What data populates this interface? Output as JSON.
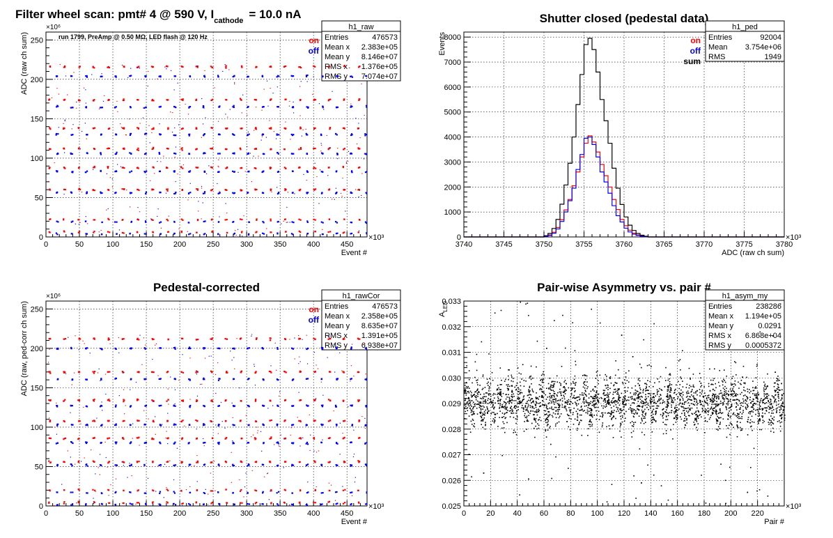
{
  "chart_data": [
    {
      "type": "scatter",
      "title": "Filter wheel scan: pmt#   4 @   590 V, I",
      "title_sub": "cathode",
      "title_tail": "= 10.0 nA",
      "annotation": "run 1799, PreAmp @ 0.50 MΩ, LED flash @  120 Hz",
      "xlabel": "Event #",
      "ylabel": "ADC (raw ch sum)",
      "x_multiplier": "×10³",
      "y_multiplier": "×10⁶",
      "xlim": [
        0,
        480
      ],
      "ylim": [
        0,
        260
      ],
      "xticks": [
        0,
        50,
        100,
        150,
        200,
        250,
        300,
        350,
        400,
        450
      ],
      "yticks": [
        0,
        50,
        100,
        150,
        200,
        250
      ],
      "grid": true,
      "legend": [
        {
          "name": "on",
          "color": "#ff0000"
        },
        {
          "name": "off",
          "color": "#0000ff"
        }
      ],
      "stats": {
        "name": "h1_raw",
        "rows": [
          [
            "Entries",
            "476573"
          ],
          [
            "Mean x",
            "2.383e+05"
          ],
          [
            "Mean y",
            "8.146e+07"
          ],
          [
            "RMS x",
            "1.376e+05"
          ],
          [
            "RMS y",
            "7.074e+07"
          ]
        ]
      },
      "series": [
        {
          "name": "on",
          "color": "#ff0000",
          "levels": [
            216,
            174,
            138,
            112,
            88,
            60,
            22,
            6
          ],
          "period": 22,
          "offset": 3
        },
        {
          "name": "off",
          "color": "#0000ff",
          "levels": [
            204,
            165,
            130,
            106,
            83,
            56,
            19,
            4
          ],
          "period": 22,
          "offset": 14
        }
      ]
    },
    {
      "type": "line",
      "title": "Shutter closed (pedestal data)",
      "xlabel": "ADC (raw ch sum)",
      "ylabel": "Events",
      "x_multiplier": "×10³",
      "xlim": [
        3740,
        3780
      ],
      "ylim": [
        0,
        8200
      ],
      "xticks": [
        3740,
        3745,
        3750,
        3755,
        3760,
        3765,
        3770,
        3775,
        3780
      ],
      "yticks": [
        0,
        1000,
        2000,
        3000,
        4000,
        5000,
        6000,
        7000,
        8000
      ],
      "grid": true,
      "legend": [
        {
          "name": "on",
          "color": "#ff0000"
        },
        {
          "name": "off",
          "color": "#0000ff"
        },
        {
          "name": "sum",
          "color": "#000000"
        }
      ],
      "stats": {
        "name": "h1_ped",
        "rows": [
          [
            "Entries",
            "92004"
          ],
          [
            "Mean",
            "3.754e+06"
          ],
          [
            "RMS",
            "1949"
          ]
        ]
      },
      "bin_width": 0.5,
      "bins_start": 3750,
      "series": [
        {
          "name": "on",
          "color": "#ff0000",
          "values": [
            30,
            80,
            190,
            380,
            690,
            1080,
            1500,
            2050,
            2600,
            3200,
            3750,
            4050,
            3800,
            3400,
            2900,
            2450,
            2000,
            1500,
            1100,
            700,
            450,
            270,
            150,
            80,
            40,
            20
          ]
        },
        {
          "name": "off",
          "color": "#0000ff",
          "values": [
            20,
            60,
            150,
            320,
            620,
            1000,
            1450,
            1950,
            2700,
            3300,
            3950,
            4000,
            3700,
            3200,
            2600,
            2200,
            1750,
            1250,
            850,
            600,
            350,
            200,
            110,
            60,
            30,
            10
          ]
        },
        {
          "name": "sum",
          "color": "#000000",
          "values": [
            50,
            140,
            340,
            700,
            1310,
            2080,
            2950,
            4000,
            5300,
            6500,
            7700,
            7950,
            7500,
            6600,
            5500,
            4650,
            3750,
            2750,
            1950,
            1300,
            800,
            470,
            260,
            140,
            70,
            30
          ]
        }
      ]
    },
    {
      "type": "scatter",
      "title": "Pedestal-corrected",
      "xlabel": "Event #",
      "ylabel": "ADC (raw, ped-corr ch sum)",
      "x_multiplier": "×10³",
      "y_multiplier": "×10⁶",
      "xlim": [
        0,
        480
      ],
      "ylim": [
        0,
        260
      ],
      "xticks": [
        0,
        50,
        100,
        150,
        200,
        250,
        300,
        350,
        400,
        450
      ],
      "yticks": [
        0,
        50,
        100,
        150,
        200,
        250
      ],
      "grid": true,
      "legend": [
        {
          "name": "on",
          "color": "#ff0000"
        },
        {
          "name": "off",
          "color": "#0000ff"
        }
      ],
      "stats": {
        "name": "h1_rawCor",
        "rows": [
          [
            "Entries",
            "476573"
          ],
          [
            "Mean x",
            "2.358e+05"
          ],
          [
            "Mean y",
            "8.635e+07"
          ],
          [
            "RMS x",
            "1.391e+05"
          ],
          [
            "RMS y",
            "6.938e+07"
          ]
        ]
      },
      "series": [
        {
          "name": "on",
          "color": "#ff0000",
          "levels": [
            212,
            170,
            134,
            108,
            86,
            56,
            20,
            4
          ],
          "period": 22,
          "offset": 3
        },
        {
          "name": "off",
          "color": "#0000ff",
          "levels": [
            200,
            161,
            127,
            103,
            80,
            52,
            17,
            2
          ],
          "period": 22,
          "offset": 14
        }
      ]
    },
    {
      "type": "scatter",
      "title": "Pair-wise Asymmetry vs. pair #",
      "xlabel": "Pair #",
      "ylabel": "A",
      "ylabel_sub": "LED",
      "x_multiplier": "×10³",
      "xlim": [
        0,
        240
      ],
      "ylim": [
        0.025,
        0.033
      ],
      "xticks": [
        0,
        20,
        40,
        60,
        80,
        100,
        120,
        140,
        160,
        180,
        200,
        220
      ],
      "yticks": [
        0.025,
        0.026,
        0.027,
        0.028,
        0.029,
        0.03,
        0.031,
        0.032,
        0.033
      ],
      "grid": true,
      "stats": {
        "name": "h1_asym_my",
        "rows": [
          [
            "Entries",
            "238286"
          ],
          [
            "Mean x",
            "1.194e+05"
          ],
          [
            "Mean y",
            "0.0291"
          ],
          [
            "RMS x",
            "6.868e+04"
          ],
          [
            "RMS y",
            "0.0005372"
          ]
        ]
      },
      "series": [
        {
          "name": "",
          "color": "#000000",
          "mean": 0.0291,
          "rms": 0.00054
        }
      ]
    }
  ]
}
